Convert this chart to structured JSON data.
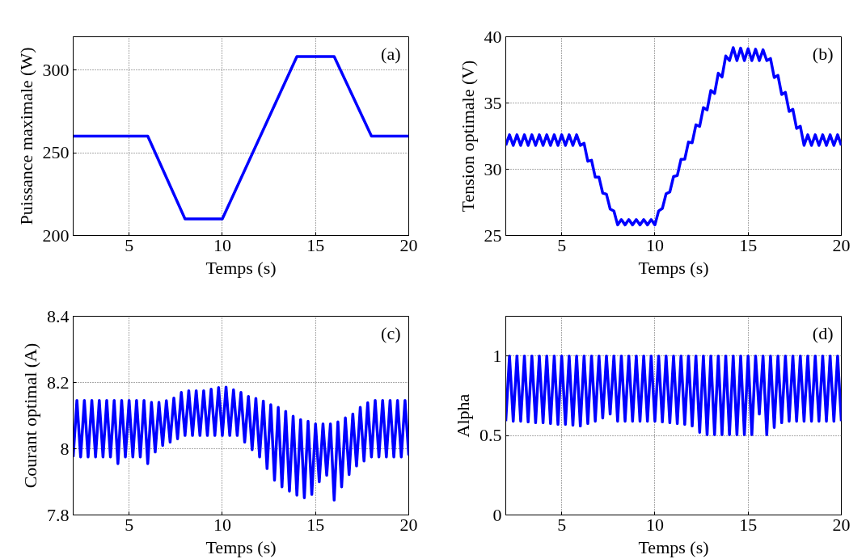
{
  "chart_data": [
    {
      "type": "line",
      "xlabel": "Temps (s)",
      "ylabel": "Puissance maximale (W)",
      "annotations": [
        "(a)"
      ],
      "grid": true,
      "xlim": [
        2,
        20
      ],
      "ylim": [
        200,
        320
      ],
      "xticks": [
        5,
        10,
        15,
        20
      ],
      "yticks": [
        200,
        250,
        300
      ],
      "x": [
        2,
        6,
        8,
        10,
        14,
        16,
        18,
        20
      ],
      "series": [
        {
          "color": "#0000ff",
          "values": [
            260,
            260,
            210,
            210,
            308,
            308,
            260,
            260
          ]
        }
      ]
    },
    {
      "type": "line",
      "xlabel": "Temps (s)",
      "ylabel": "Tension optimale (V)",
      "annotations": [
        "(b)"
      ],
      "grid": true,
      "xlim": [
        2,
        20
      ],
      "ylim": [
        25,
        40
      ],
      "xticks": [
        5,
        10,
        15,
        20
      ],
      "yticks": [
        25,
        30,
        35,
        40
      ],
      "x": [
        2,
        2.2,
        2.4,
        2.6,
        2.8,
        3,
        3.2,
        3.4,
        3.6,
        3.8,
        4,
        4.2,
        4.4,
        4.6,
        4.8,
        5,
        5.2,
        5.4,
        5.6,
        5.8,
        6,
        6.2,
        6.4,
        6.6,
        6.8,
        7,
        7.2,
        7.4,
        7.6,
        7.8,
        8,
        8.2,
        8.4,
        8.6,
        8.8,
        9,
        9.2,
        9.4,
        9.6,
        9.8,
        10,
        10.2,
        10.4,
        10.6,
        10.8,
        11,
        11.2,
        11.4,
        11.6,
        11.8,
        12,
        12.2,
        12.4,
        12.6,
        12.8,
        13,
        13.2,
        13.4,
        13.6,
        13.8,
        14,
        14.2,
        14.4,
        14.6,
        14.8,
        15,
        15.2,
        15.4,
        15.6,
        15.8,
        16,
        16.2,
        16.4,
        16.6,
        16.8,
        17,
        17.2,
        17.4,
        17.6,
        17.8,
        18,
        18.2,
        18.4,
        18.6,
        18.8,
        19,
        19.2,
        19.4,
        19.6,
        19.8,
        20
      ],
      "series": [
        {
          "color": "#0000ff",
          "values": [
            31.8,
            32.6,
            31.8,
            32.6,
            31.8,
            32.6,
            31.8,
            32.6,
            31.8,
            32.6,
            31.8,
            32.6,
            31.8,
            32.6,
            31.8,
            32.6,
            31.8,
            32.6,
            31.8,
            32.6,
            31.8,
            31.96,
            30.6,
            30.68,
            29.4,
            29.4,
            28.2,
            28.12,
            27.0,
            26.84,
            25.8,
            26.2,
            25.8,
            26.2,
            25.8,
            26.2,
            25.8,
            26.2,
            25.8,
            26.2,
            25.8,
            26.85,
            27.04,
            28.15,
            28.28,
            29.45,
            29.52,
            30.75,
            30.76,
            32.05,
            32.0,
            33.35,
            33.24,
            34.65,
            34.48,
            35.95,
            35.72,
            37.25,
            36.96,
            38.55,
            38.2,
            39.18,
            38.2,
            39.14,
            38.2,
            39.1,
            38.2,
            39.06,
            38.2,
            39.02,
            38.2,
            38.36,
            36.92,
            37.08,
            35.64,
            35.8,
            34.36,
            34.52,
            33.08,
            33.24,
            31.8,
            32.6,
            31.8,
            32.6,
            31.8,
            32.6,
            31.8,
            32.6,
            31.8,
            32.6,
            31.8
          ]
        }
      ]
    },
    {
      "type": "line",
      "xlabel": "Temps (s)",
      "ylabel": "Courant optimal (A)",
      "annotations": [
        "(c)"
      ],
      "grid": true,
      "xlim": [
        2,
        20
      ],
      "ylim": [
        7.8,
        8.4
      ],
      "xticks": [
        5,
        10,
        15,
        20
      ],
      "yticks": [
        7.8,
        8.0,
        8.2,
        8.4
      ],
      "x": [
        2,
        2.2,
        2.4,
        2.6,
        2.8,
        3,
        3.2,
        3.4,
        3.6,
        3.8,
        4,
        4.2,
        4.4,
        4.6,
        4.8,
        5,
        5.2,
        5.4,
        5.6,
        5.8,
        6,
        6.2,
        6.4,
        6.6,
        6.8,
        7,
        7.2,
        7.4,
        7.6,
        7.8,
        8,
        8.2,
        8.4,
        8.6,
        8.8,
        9,
        9.2,
        9.4,
        9.6,
        9.8,
        10,
        10.2,
        10.4,
        10.6,
        10.8,
        11,
        11.2,
        11.4,
        11.6,
        11.8,
        12,
        12.2,
        12.4,
        12.6,
        12.8,
        13,
        13.2,
        13.4,
        13.6,
        13.8,
        14,
        14.2,
        14.4,
        14.6,
        14.8,
        15,
        15.2,
        15.4,
        15.6,
        15.8,
        16,
        16.2,
        16.4,
        16.6,
        16.8,
        17,
        17.2,
        17.4,
        17.6,
        17.8,
        18,
        18.2,
        18.4,
        18.6,
        18.8,
        19,
        19.2,
        19.4,
        19.6,
        19.8,
        20
      ],
      "series": [
        {
          "color": "#0000ff",
          "values": [
            7.975,
            8.146,
            7.975,
            8.146,
            7.975,
            8.146,
            7.975,
            8.146,
            7.975,
            8.146,
            7.975,
            8.146,
            7.955,
            8.146,
            7.975,
            8.146,
            7.975,
            8.146,
            7.975,
            8.146,
            7.955,
            8.14,
            7.99,
            8.14,
            8.01,
            8.145,
            8.02,
            8.153,
            8.03,
            8.17,
            8.04,
            8.175,
            8.04,
            8.175,
            8.04,
            8.175,
            8.04,
            8.18,
            8.04,
            8.185,
            8.04,
            8.186,
            8.04,
            8.178,
            8.04,
            8.17,
            8.02,
            8.158,
            7.997,
            8.152,
            7.975,
            8.144,
            7.94,
            8.133,
            7.905,
            8.125,
            7.885,
            8.113,
            7.872,
            8.098,
            7.86,
            8.088,
            7.852,
            8.083,
            7.862,
            8.075,
            7.9,
            8.075,
            7.92,
            8.075,
            7.845,
            8.081,
            7.885,
            8.093,
            7.922,
            8.105,
            7.948,
            8.125,
            7.963,
            8.139,
            7.975,
            8.146,
            7.975,
            8.146,
            7.975,
            8.146,
            7.975,
            8.146,
            7.975,
            8.146,
            7.98
          ]
        }
      ]
    },
    {
      "type": "line",
      "xlabel": "Temps (s)",
      "ylabel": "Alpha",
      "annotations": [
        "(d)"
      ],
      "grid": true,
      "xlim": [
        2,
        20
      ],
      "ylim": [
        0,
        1.25
      ],
      "xticks": [
        5,
        10,
        15,
        20
      ],
      "yticks": [
        0,
        0.5,
        1
      ],
      "x": [
        2,
        2.2,
        2.4,
        2.6,
        2.8,
        3,
        3.2,
        3.4,
        3.6,
        3.8,
        4,
        4.2,
        4.4,
        4.6,
        4.8,
        5,
        5.2,
        5.4,
        5.6,
        5.8,
        6,
        6.2,
        6.4,
        6.6,
        6.8,
        7,
        7.2,
        7.4,
        7.6,
        7.8,
        8,
        8.2,
        8.4,
        8.6,
        8.8,
        9,
        9.2,
        9.4,
        9.6,
        9.8,
        10,
        10.2,
        10.4,
        10.6,
        10.8,
        11,
        11.2,
        11.4,
        11.6,
        11.8,
        12,
        12.2,
        12.4,
        12.6,
        12.8,
        13,
        13.2,
        13.4,
        13.6,
        13.8,
        14,
        14.2,
        14.4,
        14.6,
        14.8,
        15,
        15.2,
        15.4,
        15.6,
        15.8,
        16,
        16.2,
        16.4,
        16.6,
        16.8,
        17,
        17.2,
        17.4,
        17.6,
        17.8,
        18,
        18.2,
        18.4,
        18.6,
        18.8,
        19,
        19.2,
        19.4,
        19.6,
        19.8,
        20
      ],
      "series": [
        {
          "color": "#0000ff",
          "values": [
            0.59,
            1,
            0.59,
            1,
            0.59,
            1,
            0.585,
            1,
            0.58,
            1,
            0.58,
            1,
            0.575,
            1,
            0.57,
            1,
            0.57,
            1,
            0.565,
            1,
            0.56,
            1,
            0.575,
            1,
            0.59,
            1,
            0.61,
            1,
            0.635,
            1,
            0.59,
            1,
            0.59,
            1,
            0.59,
            1,
            0.59,
            1,
            0.59,
            1,
            0.59,
            1,
            0.585,
            1,
            0.58,
            1,
            0.575,
            1,
            0.57,
            1,
            0.56,
            1,
            0.52,
            1,
            0.505,
            1,
            0.505,
            1,
            0.505,
            1,
            0.505,
            1,
            0.505,
            1,
            0.505,
            1,
            0.505,
            1,
            0.635,
            1,
            0.505,
            1,
            0.55,
            1,
            0.58,
            1,
            0.59,
            1,
            0.59,
            1,
            0.59,
            1,
            0.59,
            1,
            0.59,
            1,
            0.59,
            1,
            0.59,
            1,
            0.59
          ]
        }
      ]
    }
  ]
}
